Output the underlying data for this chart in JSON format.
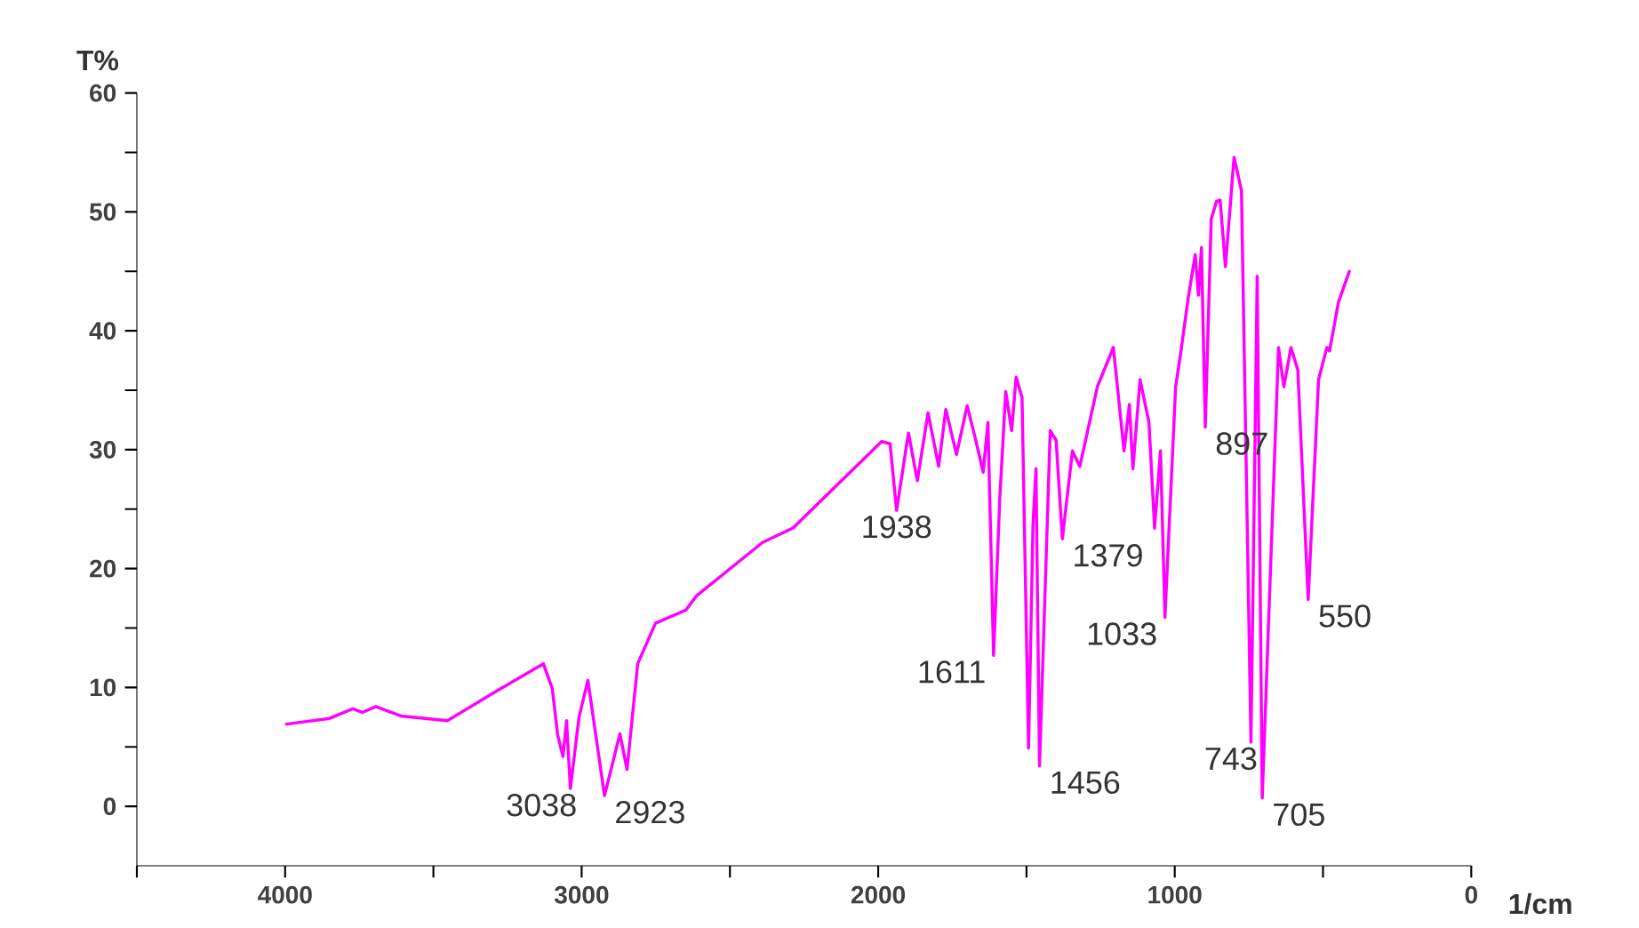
{
  "chart_data": {
    "type": "line",
    "xlabel": "1/cm",
    "ylabel": "T%",
    "xlim": [
      4500,
      0
    ],
    "ylim": [
      -5,
      60
    ],
    "xticks": [
      {
        "value": 4500,
        "label": null
      },
      4000,
      {
        "value": 3500,
        "label": null
      },
      3000,
      {
        "value": 2500,
        "label": null
      },
      2000,
      {
        "value": 1500,
        "label": null
      },
      1000,
      {
        "value": 500,
        "label": null
      },
      0
    ],
    "yticks": [
      0,
      {
        "value": 5,
        "label": null
      },
      10,
      {
        "value": 15,
        "label": null
      },
      20,
      {
        "value": 25,
        "label": null
      },
      30,
      {
        "value": 35,
        "label": null
      },
      40,
      {
        "value": 45,
        "label": null
      },
      50,
      {
        "value": 55,
        "label": null
      },
      60
    ],
    "grid": false,
    "marker": "none",
    "line_style": "solid",
    "series": [
      {
        "color": "#ff00ff",
        "x": [
          4000,
          3850,
          3772,
          3740,
          3694,
          3610,
          3453,
          3300,
          3129,
          3099,
          3081,
          3063,
          3051,
          3038,
          3009,
          2979,
          2923,
          2871,
          2847,
          2811,
          2751,
          2649,
          2613,
          2390,
          2288,
          1988,
          1960,
          1938,
          1898,
          1868,
          1832,
          1796,
          1772,
          1736,
          1700,
          1670,
          1646,
          1630,
          1611,
          1590,
          1570,
          1550,
          1535,
          1515,
          1493,
          1478,
          1468,
          1456,
          1420,
          1400,
          1379,
          1345,
          1320,
          1261,
          1207,
          1171,
          1153,
          1141,
          1117,
          1087,
          1068,
          1048,
          1033,
          997,
          979,
          955,
          931,
          920,
          910,
          897,
          877,
          859,
          847,
          829,
          800,
          775,
          743,
          722,
          705,
          650,
          632,
          608,
          585,
          550,
          515,
          487,
          478,
          448,
          410
        ],
        "values": [
          6.9,
          7.4,
          8.2,
          7.9,
          8.4,
          7.6,
          7.2,
          9.5,
          12.0,
          9.9,
          6.0,
          4.2,
          7.2,
          1.5,
          7.5,
          10.6,
          0.9,
          6.1,
          3.1,
          12.0,
          15.4,
          16.5,
          17.7,
          22.2,
          23.4,
          30.7,
          30.5,
          24.9,
          31.4,
          27.4,
          33.1,
          28.6,
          33.4,
          29.6,
          33.7,
          30.7,
          28.1,
          32.3,
          12.7,
          25.9,
          34.9,
          31.6,
          36.1,
          34.4,
          4.9,
          23.7,
          28.4,
          3.4,
          31.6,
          30.8,
          22.5,
          29.9,
          28.6,
          35.3,
          38.6,
          29.9,
          33.8,
          28.4,
          35.9,
          32.3,
          23.4,
          29.9,
          15.9,
          35.3,
          38.3,
          42.7,
          46.4,
          43.0,
          47.0,
          31.9,
          49.4,
          50.9,
          51.0,
          45.4,
          54.6,
          51.8,
          5.4,
          44.6,
          0.7,
          38.6,
          35.3,
          38.6,
          36.7,
          17.4,
          35.9,
          38.6,
          38.3,
          42.4,
          45.1
        ]
      }
    ],
    "annotations": [
      {
        "text": "3038",
        "x": 3038,
        "y": 1.5
      },
      {
        "text": "2923",
        "x": 2923,
        "y": 0.9
      },
      {
        "text": "1938",
        "x": 1938,
        "y": 24.9
      },
      {
        "text": "1611",
        "x": 1611,
        "y": 12.7
      },
      {
        "text": "1456",
        "x": 1456,
        "y": 3.4
      },
      {
        "text": "1379",
        "x": 1379,
        "y": 22.5
      },
      {
        "text": "1033",
        "x": 1033,
        "y": 15.9
      },
      {
        "text": "897",
        "x": 897,
        "y": 31.9
      },
      {
        "text": "743",
        "x": 743,
        "y": 5.4
      },
      {
        "text": "705",
        "x": 705,
        "y": 0.7
      },
      {
        "text": "550",
        "x": 550,
        "y": 17.4
      }
    ]
  }
}
